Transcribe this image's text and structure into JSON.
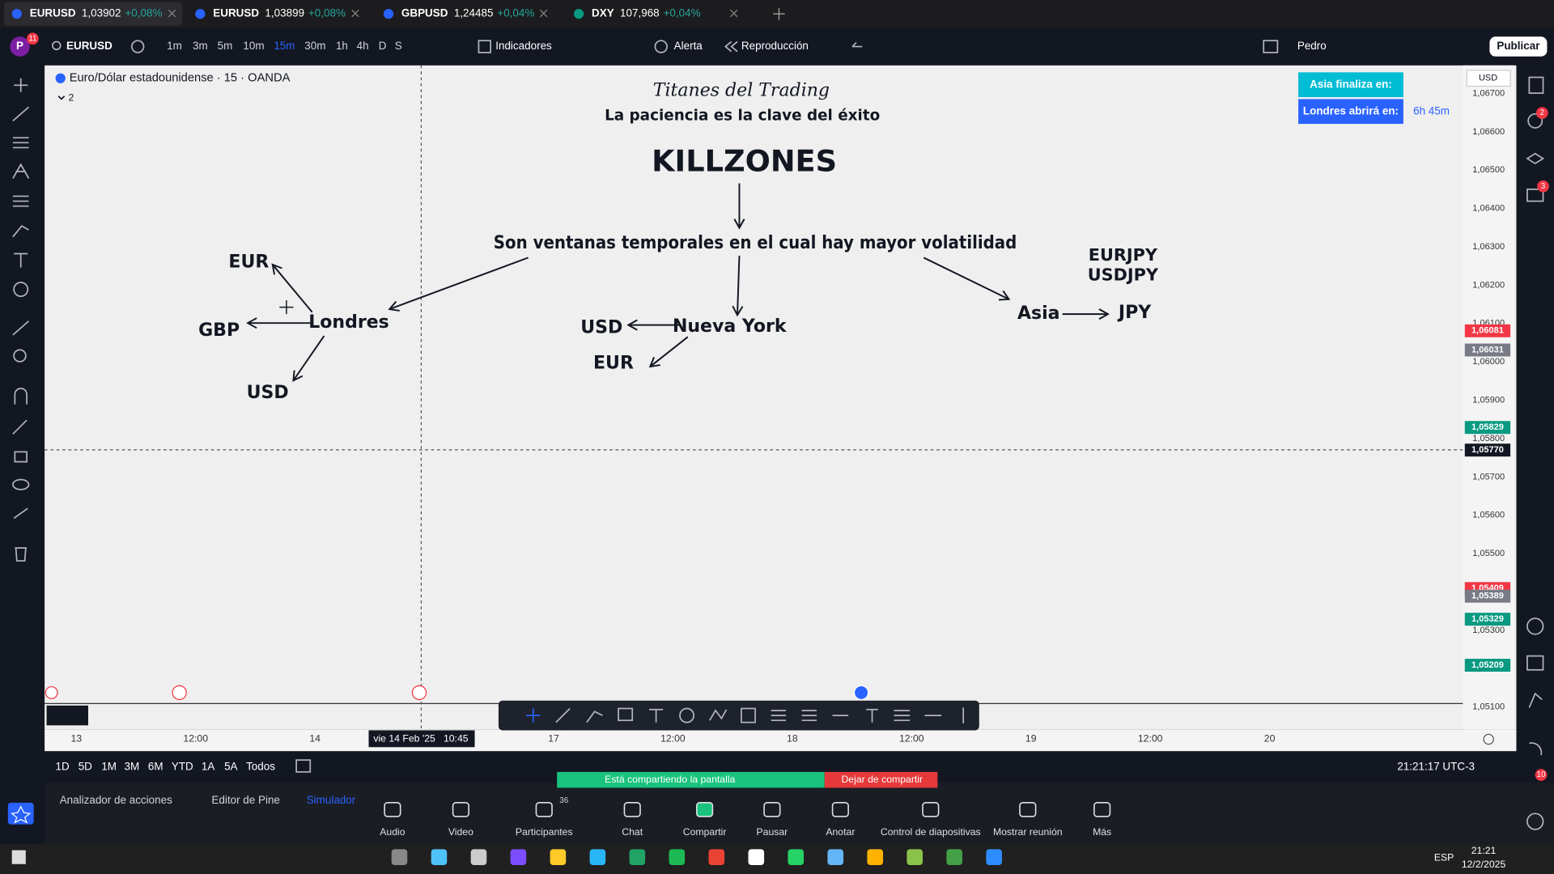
{
  "tabs": [
    {
      "symbol": "EURUSD",
      "price": "1,03902",
      "change": "+0,08%"
    },
    {
      "symbol": "EURUSD",
      "price": "1,03899",
      "change": "+0,08%"
    },
    {
      "symbol": "GBPUSD",
      "price": "1,24485",
      "change": "+0,04%"
    },
    {
      "symbol": "DXY",
      "price": "107,968",
      "change": "+0,04%"
    }
  ],
  "toolbar": {
    "avatar": "P",
    "badge": "11",
    "symbol": "EURUSD",
    "intervals": [
      "1m",
      "3m",
      "5m",
      "10m",
      "15m",
      "30m",
      "1h",
      "4h",
      "D",
      "S"
    ],
    "indicators": "Indicadores",
    "alert": "Alerta",
    "replay": "Reproducción",
    "layout": "Pedro",
    "publish": "Publicar"
  },
  "chart": {
    "legend": "Euro/Dólar estadounidense · 15 · OANDA",
    "legend_count": "2",
    "currency": "USD",
    "sessions": [
      {
        "label": "Asia finaliza en:",
        "color": "#00bcd4"
      },
      {
        "label": "Londres abrirá en:",
        "color": "#2962ff",
        "value": "6h 45m"
      }
    ],
    "price_ticks": [
      "1,06700",
      "1,06600",
      "1,06500",
      "1,06400",
      "1,06300",
      "1,06200",
      "1,06100",
      "1,06000",
      "1,05900",
      "1,05800",
      "1,05700",
      "1,05600",
      "1,05500",
      "1,05400",
      "1,05300",
      "1,05200",
      "1,05100"
    ],
    "price_tags": [
      {
        "label": "1,06081",
        "color": "#f23645"
      },
      {
        "label": "1,06031",
        "color": "#787b86"
      },
      {
        "label": "1,05829",
        "color": "#089981"
      },
      {
        "label": "1,05770",
        "color": "#131722"
      },
      {
        "label": "1,05409",
        "color": "#f23645"
      },
      {
        "label": "1,05389",
        "color": "#787b86"
      },
      {
        "label": "1,05329",
        "color": "#089981"
      },
      {
        "label": "1,05209",
        "color": "#089981"
      }
    ],
    "time_ticks": [
      "13",
      "12:00",
      "14",
      "17",
      "12:00",
      "18",
      "12:00",
      "19",
      "12:00",
      "20"
    ],
    "crosshair": {
      "date": "vie 14 Feb '25",
      "time": "10:45"
    }
  },
  "drawing": {
    "title": "Titanes del Trading",
    "subtitle": "La paciencia es la clave del éxito",
    "heading": "KILLZONES",
    "definition": "Son ventanas temporales en el cual hay mayor volatilidad",
    "london": {
      "name": "Londres",
      "pairs": [
        "EUR",
        "GBP",
        "USD"
      ]
    },
    "new_york": {
      "name": "Nueva York",
      "pairs": [
        "USD",
        "EUR"
      ]
    },
    "asia": {
      "name": "Asia",
      "pairs": [
        "JPY"
      ],
      "crosses": [
        "EURJPY",
        "USDJPY"
      ]
    }
  },
  "ranges": [
    "1D",
    "5D",
    "1M",
    "3M",
    "6M",
    "YTD",
    "1A",
    "5A",
    "Todos"
  ],
  "clock": "21:21:17 UTC-3",
  "bottom_tabs": [
    "Analizador de acciones",
    "Editor de Pine",
    "Simulador"
  ],
  "side_badges": [
    "2",
    "3",
    "10"
  ],
  "meeting": {
    "sharing": "Está compartiendo la pantalla",
    "stop": "Dejar de compartir",
    "participants_count": "36",
    "buttons": [
      "Audio",
      "Video",
      "Participantes",
      "Chat",
      "Compartir",
      "Pausar",
      "Anotar",
      "Control de diapositivas",
      "Mostrar reunión",
      "Más"
    ]
  },
  "taskbar": {
    "language": "ESP",
    "time": "21:21",
    "date": "12/2/2025"
  }
}
